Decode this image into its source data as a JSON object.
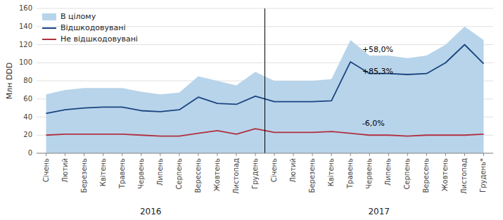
{
  "chart_data": {
    "type": "area",
    "ylabel": "Млн DDD",
    "categories": [
      "Січень",
      "Лютий",
      "Березень",
      "Квітень",
      "Травень",
      "Червень",
      "Липень",
      "Серпень",
      "Вересень",
      "Жовтень",
      "Листопад",
      "Грудень",
      "Січень",
      "Лютий",
      "Березень",
      "Квітень",
      "Травень",
      "Червень",
      "Липень",
      "Серпень",
      "Вересень",
      "Жовтень",
      "Листопад",
      "Грудень*"
    ],
    "category_groups": [
      "2016",
      "2017"
    ],
    "series": [
      {
        "name": "В цілому",
        "type": "area",
        "color": "#b8d4ea",
        "values": [
          65,
          70,
          72,
          72,
          72,
          68,
          65,
          67,
          85,
          80,
          75,
          90,
          80,
          80,
          80,
          82,
          125,
          108,
          108,
          105,
          108,
          120,
          140,
          125
        ]
      },
      {
        "name": "Відшкодовувані",
        "type": "line",
        "color": "#1a4480",
        "values": [
          44,
          48,
          50,
          51,
          51,
          47,
          46,
          48,
          62,
          55,
          54,
          63,
          57,
          57,
          57,
          58,
          101,
          88,
          88,
          87,
          88,
          100,
          120,
          99
        ]
      },
      {
        "name": "Не відшкодовувані",
        "type": "line",
        "color": "#b03040",
        "values": [
          20,
          21,
          21,
          21,
          21,
          20,
          19,
          19,
          22,
          25,
          21,
          27,
          23,
          23,
          23,
          24,
          22,
          20,
          20,
          19,
          20,
          20,
          20,
          21
        ]
      }
    ],
    "annotations": [
      "+58,0%",
      "+85,3%",
      "-6,0%"
    ],
    "ylim": [
      0,
      160
    ],
    "yticks": [
      0,
      20,
      40,
      60,
      80,
      100,
      120,
      140,
      160
    ],
    "grid": true,
    "legend": "upper left"
  }
}
